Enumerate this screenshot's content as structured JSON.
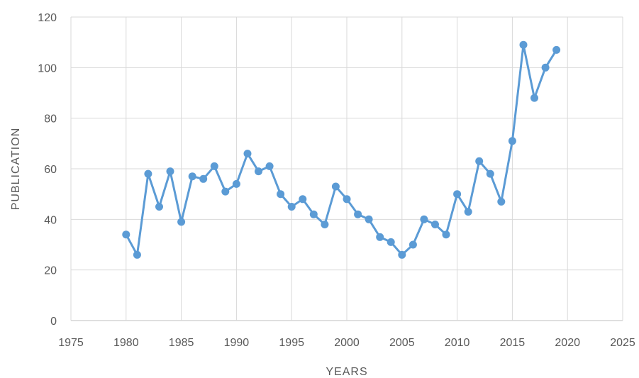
{
  "chart_data": {
    "type": "scatter",
    "title": "",
    "xlabel": "YEARS",
    "ylabel": "PUBLICATION",
    "xlim": [
      1975,
      2025
    ],
    "ylim": [
      0,
      120
    ],
    "x_ticks": [
      "1975",
      "1980",
      "1985",
      "1990",
      "1995",
      "2000",
      "2005",
      "2010",
      "2015",
      "2020",
      "2025"
    ],
    "y_ticks": [
      "0",
      "20",
      "40",
      "60",
      "80",
      "100",
      "120"
    ],
    "grid": true,
    "legend": "none",
    "color": "#5B9BD5",
    "series": [
      {
        "x": [
          1980,
          1981,
          1982,
          1983,
          1984,
          1985,
          1986,
          1987,
          1988,
          1989,
          1990,
          1991,
          1992,
          1993,
          1994,
          1995,
          1996,
          1997,
          1998,
          1999,
          2000,
          2001,
          2002,
          2003,
          2004,
          2005,
          2006,
          2007,
          2008,
          2009,
          2010,
          2011,
          2012,
          2013,
          2014,
          2015,
          2016,
          2017,
          2018,
          2019
        ],
        "values": [
          34,
          26,
          58,
          45,
          59,
          39,
          57,
          56,
          61,
          51,
          54,
          66,
          59,
          61,
          50,
          45,
          48,
          42,
          38,
          53,
          48,
          42,
          40,
          33,
          31,
          26,
          30,
          40,
          38,
          34,
          50,
          43,
          63,
          58,
          47,
          71,
          109,
          88,
          100,
          107
        ]
      }
    ]
  }
}
